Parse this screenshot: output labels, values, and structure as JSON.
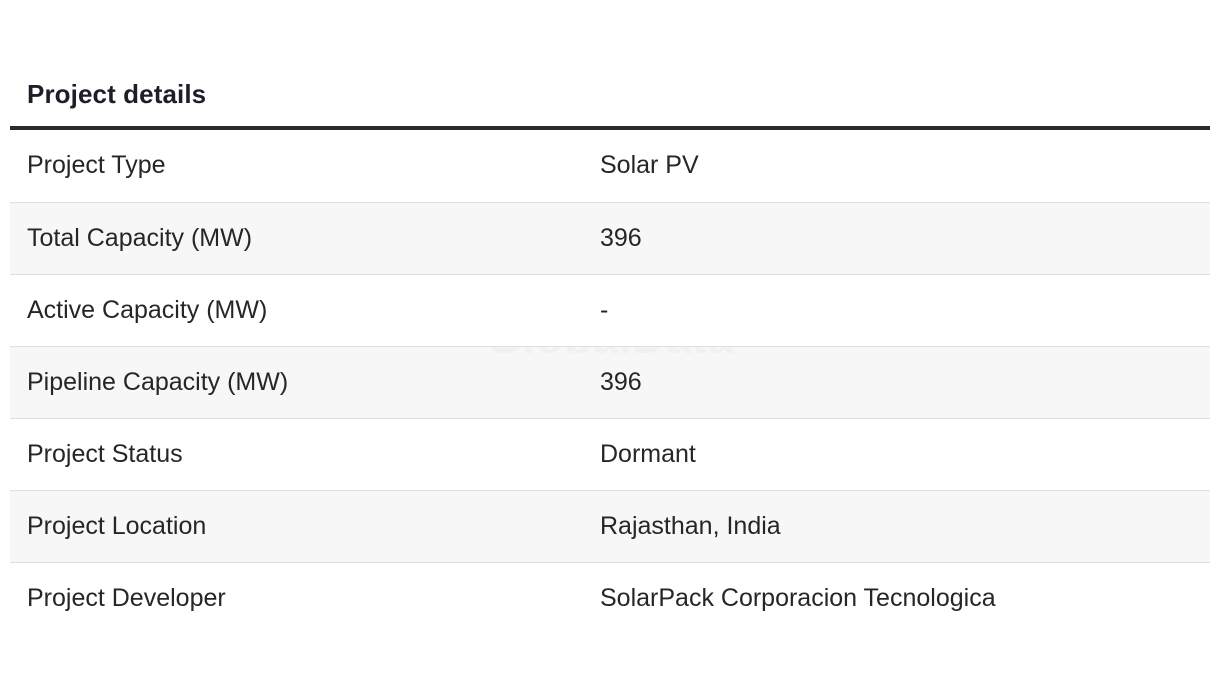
{
  "section": {
    "title": "Project details"
  },
  "watermark": "GlobalData",
  "rows": [
    {
      "label": "Project Type",
      "value": "Solar PV"
    },
    {
      "label": "Total Capacity (MW)",
      "value": "396"
    },
    {
      "label": "Active Capacity (MW)",
      "value": "-"
    },
    {
      "label": "Pipeline Capacity (MW)",
      "value": "396"
    },
    {
      "label": "Project Status",
      "value": "Dormant"
    },
    {
      "label": "Project Location",
      "value": "Rajasthan, India"
    },
    {
      "label": "Project Developer",
      "value": "SolarPack Corporacion Tecnologica"
    }
  ]
}
